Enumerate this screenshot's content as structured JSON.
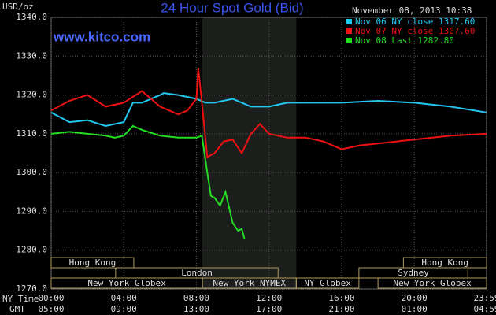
{
  "chart_data": {
    "type": "line",
    "title": "24 Hour Spot Gold (Bid)",
    "site": "www.kitco.com",
    "ylabel": "USD/oz",
    "timestamp": "November 08, 2013 10:38",
    "row_labels": [
      "NY Time",
      "GMT"
    ],
    "ylim": [
      1270,
      1340
    ],
    "yticks": [
      {
        "value": 1270,
        "label": "1270.0"
      },
      {
        "value": 1280,
        "label": "1280.0"
      },
      {
        "value": 1290,
        "label": "1290.0"
      },
      {
        "value": 1300,
        "label": "1300.0"
      },
      {
        "value": 1310,
        "label": "1310.0"
      },
      {
        "value": 1320,
        "label": "1320.0"
      },
      {
        "value": 1330,
        "label": "1330.0"
      },
      {
        "value": 1340,
        "label": "1340.0"
      }
    ],
    "xlim": [
      0,
      23.98
    ],
    "xticks": [
      {
        "value": 0,
        "label": "00:00"
      },
      {
        "value": 4,
        "label": "04:00"
      },
      {
        "value": 8,
        "label": "08:00"
      },
      {
        "value": 12,
        "label": "12:00"
      },
      {
        "value": 16,
        "label": "16:00"
      },
      {
        "value": 20,
        "label": "20:00"
      },
      {
        "value": 23.98,
        "label": "23:59"
      }
    ],
    "gmt_labels": [
      "05:00",
      "09:00",
      "13:00",
      "17:00",
      "21:00",
      "01:00",
      "04:59"
    ],
    "sessions": [
      "Hong Kong",
      "Hong Kong",
      "London",
      "Sydney",
      "New York Globex",
      "New York NYMEX",
      "NY Globex",
      "New York Globex"
    ],
    "grid": true,
    "series": [
      {
        "name": "Nov 06 NY close 1317.60",
        "color": "#22c8f0",
        "x": [
          0,
          1,
          2,
          3,
          3.5,
          4,
          4.5,
          5,
          6,
          6.2,
          7,
          8,
          8.5,
          9,
          10,
          11,
          12,
          13,
          14,
          16,
          18,
          20,
          22,
          23.98
        ],
        "values": [
          1315.5,
          1313,
          1313.5,
          1312,
          1312.5,
          1313,
          1318,
          1318,
          1320,
          1320.5,
          1320,
          1319,
          1318,
          1318,
          1319,
          1317,
          1317,
          1318,
          1318,
          1318,
          1318.5,
          1318,
          1317,
          1315.5
        ]
      },
      {
        "name": "Nov 07 NY close 1307.60",
        "color": "#ee1111",
        "x": [
          0,
          1,
          2,
          3,
          4,
          5,
          6,
          7,
          7.5,
          8,
          8.1,
          8.3,
          8.6,
          9,
          9.5,
          10,
          10.5,
          11,
          11.5,
          12,
          13,
          14,
          15,
          16,
          17,
          18,
          19,
          20,
          21,
          22,
          23.98
        ],
        "values": [
          1316,
          1318.5,
          1320,
          1317,
          1318,
          1321,
          1317,
          1315,
          1316,
          1319,
          1327,
          1318,
          1304,
          1305,
          1308,
          1308.5,
          1305,
          1310,
          1312.5,
          1310,
          1309,
          1309,
          1308,
          1306,
          1307,
          1307.5,
          1308,
          1308.5,
          1309,
          1309.5,
          1310
        ]
      },
      {
        "name": "Nov 08 Last 1282.80",
        "color": "#22dd22",
        "x": [
          0,
          1,
          2,
          3,
          3.5,
          4,
          4.5,
          5,
          6,
          7,
          8,
          8.3,
          8.6,
          8.8,
          9,
          9.3,
          9.6,
          10,
          10.3,
          10.5,
          10.65
        ],
        "values": [
          1310,
          1310.5,
          1310,
          1309.5,
          1309,
          1309.5,
          1312,
          1311,
          1309.5,
          1309,
          1309,
          1309.5,
          1300,
          1294,
          1293.5,
          1291.5,
          1295,
          1287,
          1285,
          1285.5,
          1282.8
        ]
      }
    ]
  }
}
